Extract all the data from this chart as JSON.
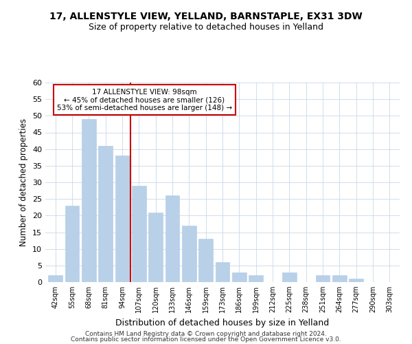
{
  "title": "17, ALLENSTYLE VIEW, YELLAND, BARNSTAPLE, EX31 3DW",
  "subtitle": "Size of property relative to detached houses in Yelland",
  "xlabel": "Distribution of detached houses by size in Yelland",
  "ylabel": "Number of detached properties",
  "bar_labels": [
    "42sqm",
    "55sqm",
    "68sqm",
    "81sqm",
    "94sqm",
    "107sqm",
    "120sqm",
    "133sqm",
    "146sqm",
    "159sqm",
    "173sqm",
    "186sqm",
    "199sqm",
    "212sqm",
    "225sqm",
    "238sqm",
    "251sqm",
    "264sqm",
    "277sqm",
    "290sqm",
    "303sqm"
  ],
  "bar_values": [
    2,
    23,
    49,
    41,
    38,
    29,
    21,
    26,
    17,
    13,
    6,
    3,
    2,
    0,
    3,
    0,
    2,
    2,
    1,
    0,
    0
  ],
  "bar_color": "#b8d0e8",
  "bar_edge_color": "#b8d0e8",
  "ylim": [
    0,
    60
  ],
  "yticks": [
    0,
    5,
    10,
    15,
    20,
    25,
    30,
    35,
    40,
    45,
    50,
    55,
    60
  ],
  "vline_color": "#cc0000",
  "annotation_line1": "17 ALLENSTYLE VIEW: 98sqm",
  "annotation_line2": "← 45% of detached houses are smaller (126)",
  "annotation_line3": "53% of semi-detached houses are larger (148) →",
  "annotation_box_edge": "#cc0000",
  "footer1": "Contains HM Land Registry data © Crown copyright and database right 2024.",
  "footer2": "Contains public sector information licensed under the Open Government Licence v3.0.",
  "background_color": "#ffffff",
  "grid_color": "#c8d8e8",
  "title_fontsize": 10,
  "subtitle_fontsize": 9
}
